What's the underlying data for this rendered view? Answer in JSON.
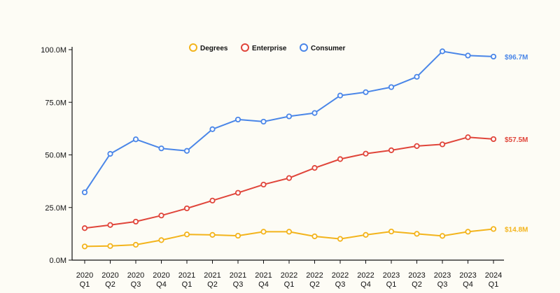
{
  "chart_data": {
    "type": "line",
    "title": "",
    "xlabel": "",
    "ylabel": "",
    "ylim": [
      0,
      100
    ],
    "y_ticks": [
      {
        "value": 0,
        "label": "0.0M"
      },
      {
        "value": 25,
        "label": "25.0M"
      },
      {
        "value": 50,
        "label": "50.0M"
      },
      {
        "value": 75,
        "label": "75.0M"
      },
      {
        "value": 100,
        "label": "100.0M"
      }
    ],
    "categories": [
      [
        "2020",
        "Q1"
      ],
      [
        "2020",
        "Q2"
      ],
      [
        "2020",
        "Q3"
      ],
      [
        "2020",
        "Q4"
      ],
      [
        "2021",
        "Q1"
      ],
      [
        "2021",
        "Q2"
      ],
      [
        "2021",
        "Q3"
      ],
      [
        "2021",
        "Q4"
      ],
      [
        "2022",
        "Q1"
      ],
      [
        "2022",
        "Q2"
      ],
      [
        "2022",
        "Q3"
      ],
      [
        "2022",
        "Q4"
      ],
      [
        "2023",
        "Q1"
      ],
      [
        "2023",
        "Q2"
      ],
      [
        "2023",
        "Q3"
      ],
      [
        "2023",
        "Q4"
      ],
      [
        "2024",
        "Q1"
      ]
    ],
    "legend_position": "top-center",
    "series": [
      {
        "name": "Degrees",
        "color": "#f3b41c",
        "end_label": "$14.8M",
        "values": [
          6.5,
          6.7,
          7.3,
          9.5,
          12.2,
          12.0,
          11.6,
          13.5,
          13.5,
          11.3,
          10.1,
          12.0,
          13.6,
          12.5,
          11.5,
          13.5,
          14.8
        ]
      },
      {
        "name": "Enterprise",
        "color": "#e0453a",
        "end_label": "$57.5M",
        "values": [
          15.2,
          16.7,
          18.3,
          21.2,
          24.6,
          28.3,
          32.0,
          35.9,
          39.0,
          43.8,
          48.0,
          50.6,
          52.2,
          54.2,
          55.0,
          58.4,
          57.5
        ]
      },
      {
        "name": "Consumer",
        "color": "#4a86e8",
        "end_label": "$96.7M",
        "values": [
          32.2,
          50.5,
          57.4,
          53.1,
          51.9,
          62.2,
          66.8,
          65.8,
          68.3,
          69.9,
          78.2,
          79.8,
          82.2,
          87.1,
          99.2,
          97.2,
          96.7
        ]
      }
    ]
  }
}
